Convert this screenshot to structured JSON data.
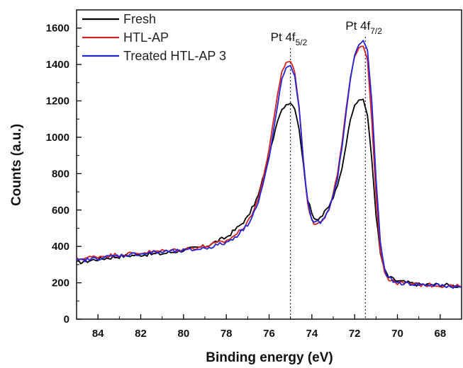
{
  "chart_data": {
    "type": "line",
    "title": "",
    "xlabel": "Binding energy (eV)",
    "ylabel": "Counts (a.u.)",
    "xlim": [
      85,
      67
    ],
    "x_reversed": true,
    "ylim": [
      0,
      1700
    ],
    "x_ticks": [
      84,
      82,
      80,
      78,
      76,
      74,
      72,
      70,
      68
    ],
    "y_ticks": [
      0,
      200,
      400,
      600,
      800,
      1000,
      1200,
      1400,
      1600
    ],
    "grid": false,
    "legend_position": "top-left",
    "series": [
      {
        "name": "Fresh",
        "color": "#000000",
        "x": [
          85,
          84,
          83,
          82,
          81,
          80,
          79,
          78,
          77.5,
          77,
          76.5,
          76,
          75.6,
          75.4,
          75.2,
          75.0,
          74.8,
          74.6,
          74.4,
          74.2,
          74.0,
          73.8,
          73.5,
          73.2,
          73.0,
          72.8,
          72.6,
          72.4,
          72.2,
          72.0,
          71.8,
          71.6,
          71.4,
          71.2,
          71.0,
          70.8,
          70.6,
          70.4,
          70.2,
          70.0,
          69.5,
          69,
          68,
          67
        ],
        "y": [
          310,
          330,
          345,
          355,
          360,
          380,
          400,
          450,
          500,
          560,
          680,
          900,
          1090,
          1150,
          1180,
          1190,
          1160,
          1050,
          850,
          660,
          580,
          550,
          570,
          620,
          670,
          730,
          830,
          960,
          1100,
          1180,
          1200,
          1210,
          1120,
          880,
          580,
          360,
          270,
          230,
          220,
          210,
          200,
          190,
          190,
          180
        ]
      },
      {
        "name": "HTL-AP",
        "color": "#d42020",
        "x": [
          85,
          84,
          83,
          82,
          81,
          80,
          79,
          78,
          77.5,
          77,
          76.5,
          76,
          75.6,
          75.4,
          75.2,
          75.0,
          74.8,
          74.6,
          74.4,
          74.2,
          74.0,
          73.8,
          73.5,
          73.2,
          73.0,
          72.8,
          72.6,
          72.4,
          72.2,
          72.0,
          71.8,
          71.6,
          71.4,
          71.2,
          71.0,
          70.8,
          70.6,
          70.4,
          70.2,
          70.0,
          69.5,
          69,
          68,
          67
        ],
        "y": [
          330,
          345,
          355,
          365,
          375,
          385,
          400,
          430,
          470,
          530,
          660,
          930,
          1240,
          1360,
          1410,
          1420,
          1360,
          1170,
          880,
          640,
          540,
          520,
          550,
          610,
          690,
          800,
          960,
          1150,
          1330,
          1440,
          1490,
          1500,
          1420,
          1100,
          690,
          380,
          260,
          220,
          205,
          200,
          195,
          190,
          185,
          180
        ]
      },
      {
        "name": "Treated HTL-AP 3",
        "color": "#2424d8",
        "x": [
          85,
          84,
          83,
          82,
          81,
          80,
          79,
          78,
          77.5,
          77,
          76.5,
          76,
          75.6,
          75.4,
          75.2,
          75.0,
          74.8,
          74.6,
          74.4,
          74.2,
          74.0,
          73.8,
          73.5,
          73.2,
          73.0,
          72.8,
          72.6,
          72.4,
          72.2,
          72.0,
          71.8,
          71.6,
          71.4,
          71.2,
          71.0,
          70.8,
          70.6,
          70.4,
          70.2,
          70.0,
          69.5,
          69,
          68,
          67
        ],
        "y": [
          320,
          335,
          350,
          360,
          370,
          375,
          390,
          420,
          460,
          520,
          640,
          880,
          1180,
          1320,
          1380,
          1390,
          1340,
          1160,
          880,
          650,
          550,
          530,
          540,
          600,
          670,
          780,
          940,
          1130,
          1320,
          1450,
          1510,
          1530,
          1480,
          1200,
          780,
          420,
          270,
          225,
          210,
          200,
          195,
          190,
          185,
          175
        ]
      }
    ],
    "annotations": [
      {
        "text": "Pt 4f",
        "sub": "5/2",
        "x": 75.0
      },
      {
        "text": "Pt 4f",
        "sub": "7/2",
        "x": 71.5
      }
    ]
  }
}
